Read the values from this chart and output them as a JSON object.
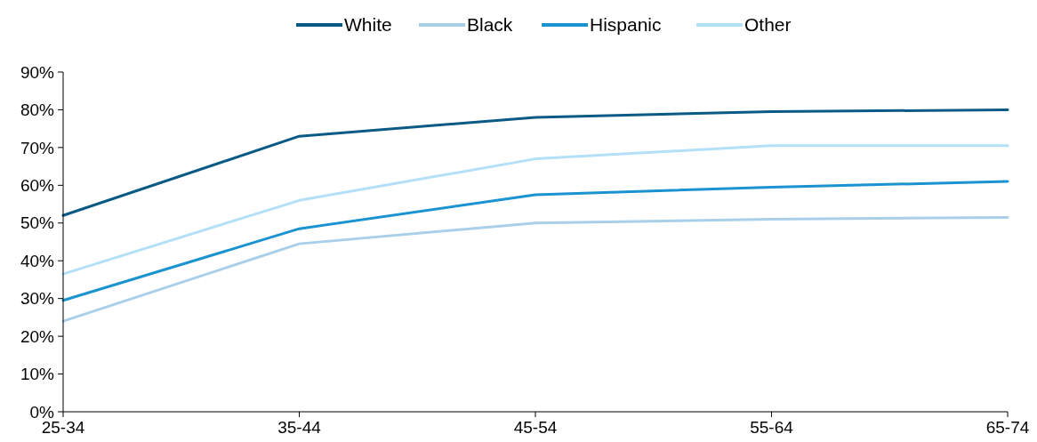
{
  "chart_data": {
    "type": "line",
    "categories": [
      "25-34",
      "35-44",
      "45-54",
      "55-64",
      "65-74"
    ],
    "series": [
      {
        "name": "White",
        "color": "#0b5a86",
        "values": [
          52,
          73,
          78,
          79.5,
          80
        ]
      },
      {
        "name": "Black",
        "color": "#a9cfe9",
        "values": [
          24,
          44.5,
          50,
          51,
          51.5
        ]
      },
      {
        "name": "Hispanic",
        "color": "#1a93d0",
        "values": [
          29.5,
          48.5,
          57.5,
          59.5,
          61
        ]
      },
      {
        "name": "Other",
        "color": "#b3e0f7",
        "values": [
          36.5,
          56,
          67,
          70.5,
          70.5
        ]
      }
    ],
    "ylim": [
      0,
      90
    ],
    "yticks": [
      {
        "value": 0,
        "label": "0%"
      },
      {
        "value": 10,
        "label": "10%"
      },
      {
        "value": 20,
        "label": "20%"
      },
      {
        "value": 30,
        "label": "30%"
      },
      {
        "value": 40,
        "label": "40%"
      },
      {
        "value": 50,
        "label": "50%"
      },
      {
        "value": 60,
        "label": "60%"
      },
      {
        "value": 70,
        "label": "70%"
      },
      {
        "value": 80,
        "label": "80%"
      },
      {
        "value": 90,
        "label": "90%"
      }
    ],
    "legend": "top",
    "grid": false,
    "marker": "none",
    "line_style": "solid"
  }
}
